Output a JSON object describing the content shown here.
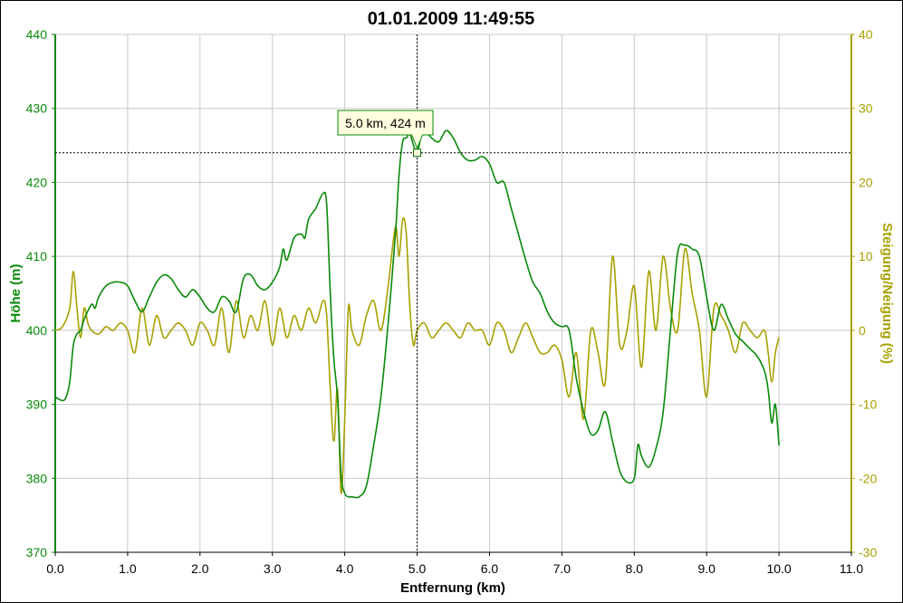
{
  "chart_data": {
    "type": "line",
    "title": "01.01.2009 11:49:55",
    "xlabel": "Entfernung (km)",
    "ylabel": "Höhe (m)",
    "y2label": "Steigung/Neigung (%)",
    "xlim": [
      0,
      11
    ],
    "ylim": [
      370,
      440
    ],
    "y2lim": [
      -30,
      40
    ],
    "grid": true,
    "x_ticks": [
      "0.0",
      "1.0",
      "2.0",
      "3.0",
      "4.0",
      "5.0",
      "6.0",
      "7.0",
      "8.0",
      "9.0",
      "10.0",
      "11.0"
    ],
    "y_ticks": [
      "370",
      "380",
      "390",
      "400",
      "410",
      "420",
      "430",
      "440"
    ],
    "y2_ticks": [
      "-30",
      "-20",
      "-10",
      "0",
      "10",
      "20",
      "30",
      "40"
    ],
    "colors": {
      "elevation": "#0a8a0a",
      "gradient": "#a8a000",
      "grid": "#c8c8c8",
      "cursor": "#000000"
    },
    "cursor": {
      "x": 5.0,
      "y": 424,
      "label": "5.0 km, 424 m"
    },
    "series": [
      {
        "axis": "left",
        "color": "#0a8a0a",
        "x": [
          0,
          0.1,
          0.15,
          0.2,
          0.25,
          0.3,
          0.35,
          0.4,
          0.5,
          0.55,
          0.6,
          0.7,
          0.8,
          0.9,
          1.0,
          1.1,
          1.2,
          1.3,
          1.4,
          1.5,
          1.6,
          1.7,
          1.8,
          1.9,
          2.0,
          2.1,
          2.2,
          2.3,
          2.4,
          2.5,
          2.6,
          2.7,
          2.8,
          2.9,
          3.0,
          3.1,
          3.15,
          3.2,
          3.3,
          3.4,
          3.45,
          3.5,
          3.6,
          3.7,
          3.75,
          3.8,
          3.85,
          3.9,
          3.95,
          4.0,
          4.05,
          4.1,
          4.2,
          4.3,
          4.4,
          4.5,
          4.6,
          4.7,
          4.75,
          4.8,
          4.85,
          4.9,
          4.95,
          5.0,
          5.05,
          5.1,
          5.2,
          5.3,
          5.4,
          5.5,
          5.6,
          5.7,
          5.8,
          5.9,
          6.0,
          6.1,
          6.2,
          6.3,
          6.4,
          6.5,
          6.6,
          6.7,
          6.8,
          6.9,
          7.0,
          7.1,
          7.2,
          7.3,
          7.4,
          7.5,
          7.6,
          7.7,
          7.8,
          7.9,
          8.0,
          8.05,
          8.1,
          8.2,
          8.3,
          8.4,
          8.5,
          8.6,
          8.7,
          8.8,
          8.9,
          9.0,
          9.1,
          9.2,
          9.3,
          9.4,
          9.5,
          9.6,
          9.7,
          9.8,
          9.85,
          9.9,
          9.95,
          10.0
        ],
        "y": [
          391,
          390.5,
          391,
          393,
          398,
          399.5,
          400,
          401.5,
          403.5,
          403,
          404.5,
          406,
          406.5,
          406.5,
          406,
          404,
          402.5,
          404.5,
          406.5,
          407.5,
          407,
          405.5,
          404.5,
          405.5,
          404.5,
          403,
          402.5,
          404.5,
          404,
          402.5,
          407,
          407.5,
          406,
          405.5,
          406.5,
          408.5,
          411,
          409.5,
          412.5,
          413,
          412.5,
          415,
          416.5,
          418.5,
          417,
          405,
          396,
          391,
          380.5,
          378,
          377.5,
          377.5,
          377.5,
          379,
          384.5,
          391,
          401,
          413,
          421,
          425.5,
          426,
          426.5,
          425,
          424,
          426,
          427,
          426,
          425.5,
          427,
          426,
          424,
          423,
          423,
          423.5,
          422.5,
          420,
          420,
          416.5,
          413,
          409.5,
          406.5,
          405,
          402.5,
          401,
          400.5,
          400,
          393.5,
          389,
          386,
          386.5,
          389,
          385,
          381,
          379.5,
          380,
          384.5,
          383,
          381.5,
          384,
          389,
          400,
          410.5,
          411.5,
          411,
          410,
          404.5,
          400,
          403.5,
          401.5,
          399.5,
          398.5,
          397.5,
          396.5,
          394.5,
          392,
          387.5,
          390,
          384.5
        ]
      },
      {
        "axis": "right",
        "color": "#a8a000",
        "x": [
          0,
          0.1,
          0.2,
          0.25,
          0.3,
          0.35,
          0.4,
          0.45,
          0.5,
          0.6,
          0.7,
          0.8,
          0.9,
          1.0,
          1.1,
          1.2,
          1.3,
          1.4,
          1.5,
          1.6,
          1.7,
          1.8,
          1.9,
          2.0,
          2.1,
          2.2,
          2.3,
          2.4,
          2.5,
          2.6,
          2.7,
          2.8,
          2.9,
          3.0,
          3.1,
          3.2,
          3.3,
          3.4,
          3.5,
          3.6,
          3.7,
          3.75,
          3.8,
          3.85,
          3.9,
          3.95,
          4.0,
          4.05,
          4.1,
          4.2,
          4.3,
          4.4,
          4.5,
          4.6,
          4.7,
          4.75,
          4.8,
          4.85,
          4.9,
          4.95,
          5.0,
          5.1,
          5.2,
          5.3,
          5.4,
          5.5,
          5.6,
          5.7,
          5.8,
          5.9,
          6.0,
          6.1,
          6.2,
          6.3,
          6.4,
          6.5,
          6.6,
          6.7,
          6.8,
          6.9,
          7.0,
          7.1,
          7.2,
          7.3,
          7.4,
          7.5,
          7.6,
          7.7,
          7.8,
          7.9,
          8.0,
          8.1,
          8.2,
          8.3,
          8.4,
          8.5,
          8.6,
          8.7,
          8.8,
          8.9,
          9.0,
          9.1,
          9.2,
          9.3,
          9.4,
          9.5,
          9.6,
          9.7,
          9.8,
          9.85,
          9.9,
          9.95,
          10.0
        ],
        "y": [
          0,
          0.5,
          3,
          8,
          3,
          -1,
          3,
          1,
          0,
          -0.5,
          0.5,
          0,
          1,
          0,
          -3,
          3,
          -2,
          2,
          -1,
          0,
          1,
          0,
          -2,
          1,
          0,
          -2,
          3,
          -3,
          4,
          -1,
          2,
          0,
          4,
          -2,
          3,
          -1,
          2,
          0,
          3,
          1,
          4,
          2,
          -8,
          -15,
          -8,
          -22,
          -12,
          3,
          0,
          -2,
          2,
          4,
          0,
          6,
          14,
          10,
          15,
          13,
          3,
          -2,
          0,
          1,
          -1,
          0,
          1,
          0,
          -1,
          1,
          0,
          0,
          -2,
          1,
          0,
          -3,
          -1,
          1,
          -1,
          -3,
          -3,
          -2,
          -4,
          -9,
          -3,
          -12,
          0,
          -3,
          -7,
          10,
          -2,
          0,
          6,
          -5,
          8,
          0,
          10,
          3,
          0,
          11,
          5,
          0,
          -9,
          3,
          2,
          0,
          -3,
          1,
          0,
          -1,
          0,
          -3,
          -7,
          -3,
          -1
        ]
      }
    ]
  }
}
